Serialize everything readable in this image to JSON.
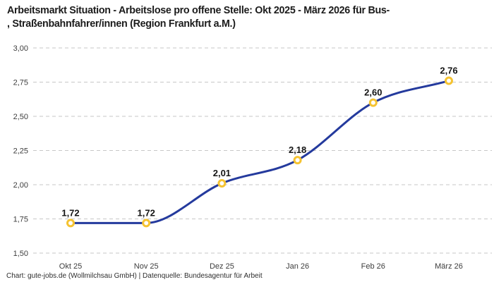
{
  "title": {
    "line1": "Arbeitsmarkt Situation - Arbeitslose pro offene Stelle: Okt 2025 - März 2026 für Bus-",
    "line2": ", Straßenbahnfahrer/innen (Region Frankfurt a.M.)"
  },
  "footer": {
    "text": "Chart: gute-jobs.de (Wollmilchsau GmbH) | Datenquelle: Bundesagentur für Arbeit"
  },
  "chart_data": {
    "type": "line",
    "title": "Arbeitsmarkt Situation - Arbeitslose pro offene Stelle: Okt 2025 - März 2026 für Bus-, Straßenbahnfahrer/innen (Region Frankfurt a.M.)",
    "categories": [
      "Okt 25",
      "Nov 25",
      "Dez 25",
      "Jan 26",
      "Feb 26",
      "März 26"
    ],
    "values": [
      1.72,
      1.72,
      2.01,
      2.18,
      2.6,
      2.76
    ],
    "point_labels": [
      "1,72",
      "1,72",
      "2,01",
      "2,18",
      "2,60",
      "2,76"
    ],
    "xlabel": "",
    "ylabel": "",
    "ylim": [
      1.5,
      3.0
    ],
    "y_tick_values": [
      1.5,
      1.75,
      2.0,
      2.25,
      2.5,
      2.75,
      3.0
    ],
    "y_tick_labels": [
      "1,50",
      "1,75",
      "2,00",
      "2,25",
      "2,50",
      "2,75",
      "3,00"
    ],
    "grid": "horizontal-dashed",
    "legend_position": "none",
    "colors": {
      "line": "#243a9d",
      "marker_ring": "#f5c331",
      "marker_fill": "#ffffff",
      "grid": "#c7c7c7",
      "tick_text": "#3d3d3d",
      "point_label": "#141414"
    }
  }
}
